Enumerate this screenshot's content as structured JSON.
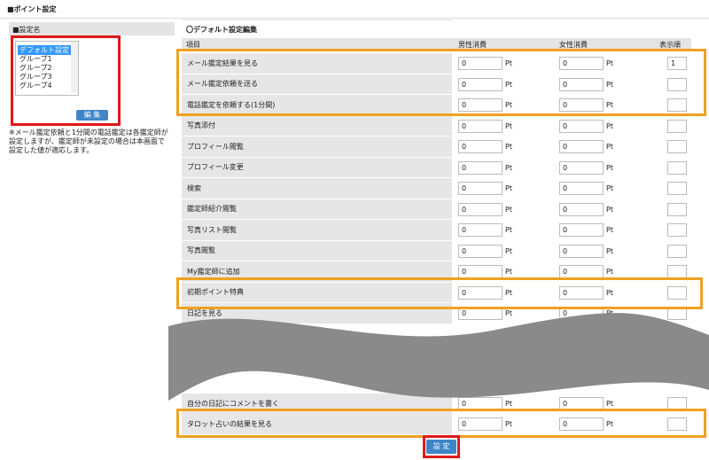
{
  "header": {
    "title": "■ポイント設定"
  },
  "sidebar": {
    "title": "■設定名",
    "options": [
      "デフォルト設定",
      "グループ1",
      "グループ2",
      "グループ3",
      "グループ4"
    ],
    "selected": "デフォルト設定",
    "edit_button": "編 集",
    "note": "※メール鑑定依頼と1分間の電話鑑定は各鑑定師が設定しますが、鑑定師が未設定の場合は本画面で設定した値が適応します。"
  },
  "editor": {
    "title": "〇デフォルト設定編集",
    "unit": "Pt",
    "submit_button": "設 定",
    "columns": [
      "項目",
      "男性消費",
      "女性消費",
      "表示順"
    ],
    "rows": [
      {
        "label": "メール鑑定結果を見る",
        "male": 0,
        "female": 0,
        "order": 1
      },
      {
        "label": "メール鑑定依頼を送る",
        "male": 0,
        "female": 0
      },
      {
        "label": "電話鑑定を依頼する(1分間)",
        "male": 0,
        "female": 0
      },
      {
        "label": "写真添付",
        "male": 0,
        "female": 0
      },
      {
        "label": "プロフィール閲覧",
        "male": 0,
        "female": 0
      },
      {
        "label": "プロフィール変更",
        "male": 0,
        "female": 0
      },
      {
        "label": "検索",
        "male": 0,
        "female": 0
      },
      {
        "label": "鑑定師紹介閲覧",
        "male": 0,
        "female": 0
      },
      {
        "label": "写真リスト閲覧",
        "male": 0,
        "female": 0
      },
      {
        "label": "写真閲覧",
        "male": 0,
        "female": 0
      },
      {
        "label": "My鑑定師に追加",
        "male": 0,
        "female": 0
      },
      {
        "label": "初期ポイント特典",
        "male": 0,
        "female": 0
      },
      {
        "label": "日記を見る",
        "male": 0,
        "female": 0
      },
      {
        "label": "自分の日記にコメントを書く",
        "male": 0,
        "female": 0
      },
      {
        "label": "タロット占いの結果を見る",
        "male": 0,
        "female": 0
      }
    ]
  }
}
